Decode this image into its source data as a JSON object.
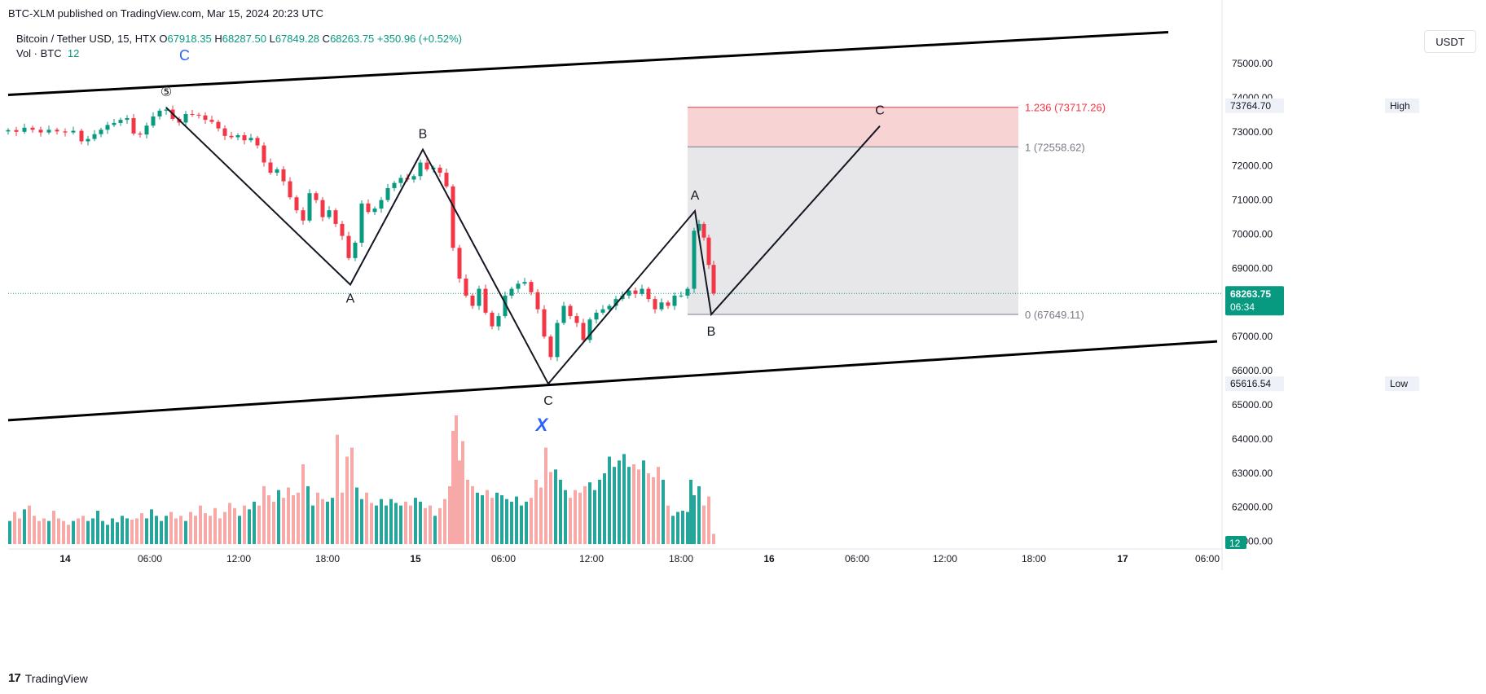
{
  "header": {
    "published": "BTC-XLM published on TradingView.com, Mar 15, 2024 20:23 UTC"
  },
  "legend": {
    "symbol": "Bitcoin / Tether USD, 15, HTX",
    "o_label": "O",
    "o_value": "67918.35",
    "h_label": "H",
    "h_value": "68287.50",
    "l_label": "L",
    "l_value": "67849.28",
    "c_label": "C",
    "c_value": "68263.75",
    "change": "+350.96 (+0.52%)",
    "vol_label": "Vol · BTC",
    "vol_value": "12",
    "wave_label": "C"
  },
  "toolbar": {
    "currency": "USDT"
  },
  "footer": {
    "brand": "TradingView",
    "logo": "17"
  },
  "colors": {
    "up": "#089981",
    "down": "#f23645",
    "vol_up": "#26a69a",
    "vol_down": "#f7a9a7",
    "wave_line": "#131722",
    "fib_red": "#f23645",
    "fib_grey": "#787b86",
    "fib_red_fill": "#f8d3d4",
    "fib_grey_fill": "#e7e7ea",
    "blue_label": "#2962ff"
  },
  "chart_data": {
    "type": "candlestick",
    "y_axis": {
      "range": [
        60000,
        76000
      ],
      "ticks": [
        "75000.00",
        "74000.00",
        "73000.00",
        "72000.00",
        "71000.00",
        "70000.00",
        "69000.00",
        "68000.00",
        "67000.00",
        "66000.00",
        "65000.00",
        "64000.00",
        "63000.00",
        "62000.00",
        "61000.00"
      ]
    },
    "x_axis": {
      "ticks": [
        "14",
        "06:00",
        "12:00",
        "18:00",
        "15",
        "06:00",
        "12:00",
        "18:00",
        "16",
        "06:00",
        "12:00",
        "18:00",
        "17",
        "06:00"
      ]
    },
    "price_labels": {
      "high_label": "High",
      "high_value": "73764.70",
      "low_label": "Low",
      "low_value": "65616.54",
      "last_value": "68263.75",
      "countdown": "06:34",
      "vol_last": "12"
    },
    "fib": [
      {
        "level": "1.236",
        "value": "(73717.26)",
        "price": 73717.26
      },
      {
        "level": "1",
        "value": "(72558.62)",
        "price": 72558.62
      },
      {
        "level": "0",
        "value": "(67649.11)",
        "price": 67649.11
      }
    ],
    "wave_labels": [
      "⑤",
      "A",
      "B",
      "C",
      "A",
      "B",
      "C"
    ],
    "x_label": "X",
    "trend_channel": {
      "upper": [
        [
          0,
          74080
        ],
        [
          1434,
          75920
        ]
      ],
      "lower": [
        [
          0,
          64550
        ],
        [
          1824,
          66860
        ]
      ]
    },
    "waves": [
      {
        "label": "⑤",
        "t": 204,
        "p": 73710
      },
      {
        "label": "A",
        "t": 430,
        "p": 68520
      },
      {
        "label": "B",
        "t": 519,
        "p": 72480
      },
      {
        "label": "C",
        "t": 673,
        "p": 65616.54
      },
      {
        "label": "A",
        "t": 853,
        "p": 70680
      },
      {
        "label": "B",
        "t": 873,
        "p": 67649.11
      },
      {
        "label": "C",
        "t": 1080,
        "p": 73170
      }
    ],
    "candles_note": "",
    "close_series": [
      [
        10,
        73050
      ],
      [
        20,
        73000
      ],
      [
        30,
        73120
      ],
      [
        40,
        73060
      ],
      [
        50,
        72980
      ],
      [
        60,
        73060
      ],
      [
        70,
        73010
      ],
      [
        80,
        72980
      ],
      [
        90,
        73030
      ],
      [
        100,
        72720
      ],
      [
        108,
        72790
      ],
      [
        116,
        72930
      ],
      [
        124,
        73060
      ],
      [
        132,
        73200
      ],
      [
        140,
        73260
      ],
      [
        148,
        73350
      ],
      [
        156,
        73400
      ],
      [
        164,
        72950
      ],
      [
        172,
        72920
      ],
      [
        180,
        73180
      ],
      [
        188,
        73450
      ],
      [
        196,
        73620
      ],
      [
        204,
        73650
      ],
      [
        212,
        73380
      ],
      [
        220,
        73270
      ],
      [
        228,
        73520
      ],
      [
        236,
        73500
      ],
      [
        244,
        73480
      ],
      [
        252,
        73350
      ],
      [
        260,
        73290
      ],
      [
        268,
        73100
      ],
      [
        276,
        72880
      ],
      [
        284,
        72840
      ],
      [
        292,
        72900
      ],
      [
        300,
        72750
      ],
      [
        308,
        72820
      ],
      [
        316,
        72600
      ],
      [
        324,
        72100
      ],
      [
        332,
        71800
      ],
      [
        340,
        71900
      ],
      [
        348,
        71550
      ],
      [
        356,
        71080
      ],
      [
        364,
        70700
      ],
      [
        372,
        70400
      ],
      [
        380,
        71200
      ],
      [
        388,
        71000
      ],
      [
        396,
        70500
      ],
      [
        404,
        70700
      ],
      [
        412,
        70300
      ],
      [
        420,
        69950
      ],
      [
        428,
        69300
      ],
      [
        436,
        69750
      ],
      [
        444,
        70900
      ],
      [
        452,
        70650
      ],
      [
        460,
        70750
      ],
      [
        468,
        71000
      ],
      [
        476,
        71350
      ],
      [
        484,
        71500
      ],
      [
        492,
        71650
      ],
      [
        500,
        71600
      ],
      [
        508,
        71700
      ],
      [
        516,
        72100
      ],
      [
        524,
        71900
      ],
      [
        532,
        71950
      ],
      [
        540,
        71800
      ],
      [
        548,
        71400
      ],
      [
        556,
        69600
      ],
      [
        564,
        68700
      ],
      [
        572,
        68200
      ],
      [
        580,
        67900
      ],
      [
        588,
        68400
      ],
      [
        596,
        67700
      ],
      [
        604,
        67300
      ],
      [
        612,
        67600
      ],
      [
        620,
        68200
      ],
      [
        628,
        68400
      ],
      [
        636,
        68550
      ],
      [
        644,
        68600
      ],
      [
        652,
        68300
      ],
      [
        660,
        67800
      ],
      [
        668,
        67000
      ],
      [
        676,
        66400
      ],
      [
        684,
        67400
      ],
      [
        692,
        67900
      ],
      [
        700,
        67600
      ],
      [
        708,
        67400
      ],
      [
        716,
        66900
      ],
      [
        724,
        67500
      ],
      [
        732,
        67700
      ],
      [
        740,
        67800
      ],
      [
        748,
        67900
      ],
      [
        756,
        68100
      ],
      [
        764,
        68200
      ],
      [
        772,
        68350
      ],
      [
        780,
        68250
      ],
      [
        788,
        68400
      ],
      [
        796,
        68100
      ],
      [
        804,
        67800
      ],
      [
        812,
        68000
      ],
      [
        820,
        67900
      ],
      [
        828,
        68200
      ],
      [
        836,
        68200
      ],
      [
        844,
        68400
      ],
      [
        852,
        70100
      ],
      [
        858,
        70300
      ],
      [
        864,
        69900
      ],
      [
        870,
        69100
      ],
      [
        876,
        68263.75
      ]
    ],
    "volume_series": [
      [
        12,
        0.18
      ],
      [
        18,
        0.25
      ],
      [
        24,
        0.2
      ],
      [
        30,
        0.27
      ],
      [
        36,
        0.3
      ],
      [
        42,
        0.22
      ],
      [
        48,
        0.18
      ],
      [
        54,
        0.2
      ],
      [
        60,
        0.18
      ],
      [
        66,
        0.26
      ],
      [
        72,
        0.2
      ],
      [
        78,
        0.18
      ],
      [
        84,
        0.15
      ],
      [
        90,
        0.18
      ],
      [
        96,
        0.2
      ],
      [
        102,
        0.22
      ],
      [
        108,
        0.18
      ],
      [
        114,
        0.2
      ],
      [
        120,
        0.26
      ],
      [
        126,
        0.18
      ],
      [
        132,
        0.15
      ],
      [
        138,
        0.2
      ],
      [
        144,
        0.17
      ],
      [
        150,
        0.22
      ],
      [
        156,
        0.2
      ],
      [
        162,
        0.19
      ],
      [
        168,
        0.2
      ],
      [
        174,
        0.24
      ],
      [
        180,
        0.2
      ],
      [
        186,
        0.27
      ],
      [
        192,
        0.22
      ],
      [
        198,
        0.18
      ],
      [
        204,
        0.22
      ],
      [
        210,
        0.25
      ],
      [
        216,
        0.2
      ],
      [
        222,
        0.22
      ],
      [
        228,
        0.18
      ],
      [
        234,
        0.25
      ],
      [
        240,
        0.22
      ],
      [
        246,
        0.3
      ],
      [
        252,
        0.24
      ],
      [
        258,
        0.22
      ],
      [
        264,
        0.28
      ],
      [
        270,
        0.2
      ],
      [
        276,
        0.25
      ],
      [
        282,
        0.32
      ],
      [
        288,
        0.28
      ],
      [
        294,
        0.22
      ],
      [
        300,
        0.3
      ],
      [
        306,
        0.27
      ],
      [
        312,
        0.33
      ],
      [
        318,
        0.3
      ],
      [
        324,
        0.45
      ],
      [
        330,
        0.38
      ],
      [
        336,
        0.33
      ],
      [
        342,
        0.42
      ],
      [
        348,
        0.36
      ],
      [
        354,
        0.44
      ],
      [
        360,
        0.38
      ],
      [
        366,
        0.4
      ],
      [
        372,
        0.62
      ],
      [
        378,
        0.45
      ],
      [
        384,
        0.3
      ],
      [
        390,
        0.4
      ],
      [
        396,
        0.35
      ],
      [
        402,
        0.33
      ],
      [
        408,
        0.36
      ],
      [
        414,
        0.85
      ],
      [
        420,
        0.4
      ],
      [
        426,
        0.68
      ],
      [
        432,
        0.75
      ],
      [
        438,
        0.44
      ],
      [
        444,
        0.35
      ],
      [
        450,
        0.4
      ],
      [
        456,
        0.32
      ],
      [
        462,
        0.3
      ],
      [
        468,
        0.35
      ],
      [
        474,
        0.3
      ],
      [
        480,
        0.35
      ],
      [
        486,
        0.32
      ],
      [
        492,
        0.3
      ],
      [
        498,
        0.33
      ],
      [
        504,
        0.3
      ],
      [
        510,
        0.36
      ],
      [
        516,
        0.33
      ],
      [
        522,
        0.28
      ],
      [
        528,
        0.3
      ],
      [
        534,
        0.22
      ],
      [
        540,
        0.28
      ],
      [
        546,
        0.35
      ],
      [
        552,
        0.45
      ],
      [
        556,
        0.88
      ],
      [
        560,
        1.0
      ],
      [
        564,
        0.65
      ],
      [
        568,
        0.8
      ],
      [
        574,
        0.5
      ],
      [
        580,
        0.45
      ],
      [
        586,
        0.4
      ],
      [
        592,
        0.38
      ],
      [
        598,
        0.42
      ],
      [
        604,
        0.36
      ],
      [
        610,
        0.4
      ],
      [
        616,
        0.38
      ],
      [
        622,
        0.35
      ],
      [
        628,
        0.33
      ],
      [
        634,
        0.37
      ],
      [
        640,
        0.3
      ],
      [
        646,
        0.33
      ],
      [
        652,
        0.36
      ],
      [
        658,
        0.5
      ],
      [
        664,
        0.44
      ],
      [
        670,
        0.75
      ],
      [
        676,
        0.56
      ],
      [
        682,
        0.58
      ],
      [
        688,
        0.5
      ],
      [
        694,
        0.42
      ],
      [
        700,
        0.36
      ],
      [
        706,
        0.42
      ],
      [
        712,
        0.4
      ],
      [
        718,
        0.45
      ],
      [
        724,
        0.48
      ],
      [
        730,
        0.42
      ],
      [
        736,
        0.5
      ],
      [
        742,
        0.55
      ],
      [
        748,
        0.68
      ],
      [
        754,
        0.6
      ],
      [
        760,
        0.65
      ],
      [
        766,
        0.7
      ],
      [
        772,
        0.6
      ],
      [
        778,
        0.62
      ],
      [
        784,
        0.58
      ],
      [
        790,
        0.65
      ],
      [
        796,
        0.55
      ],
      [
        802,
        0.52
      ],
      [
        808,
        0.6
      ],
      [
        814,
        0.5
      ],
      [
        820,
        0.3
      ],
      [
        826,
        0.22
      ],
      [
        832,
        0.25
      ],
      [
        838,
        0.26
      ],
      [
        844,
        0.25
      ],
      [
        848,
        0.5
      ],
      [
        852,
        0.38
      ],
      [
        858,
        0.45
      ],
      [
        864,
        0.3
      ],
      [
        870,
        0.37
      ],
      [
        876,
        0.08
      ]
    ]
  }
}
